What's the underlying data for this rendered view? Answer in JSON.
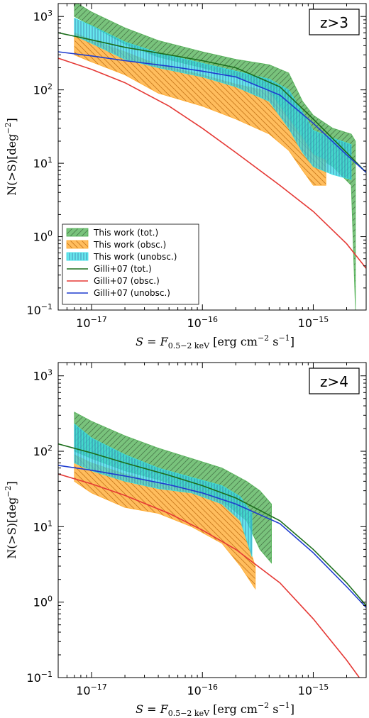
{
  "chart_data": [
    {
      "type": "area",
      "title": "",
      "annotation": "z>3",
      "xlabel": "S = F_{0.5-2 keV} [erg cm^{-2} s^{-1}]",
      "xlabel_main": "S = F",
      "xlabel_sub": "0.5−2 keV",
      "xlabel_units": "[erg cm",
      "xlabel_units_exp1": "−2",
      "xlabel_units_mid": " s",
      "xlabel_units_exp2": "−1",
      "xlabel_units_end": "]",
      "ylabel": "N(>S)[deg^{-2}]",
      "ylabel_main": "N(>S)[deg",
      "ylabel_exp": "−2",
      "ylabel_end": "]",
      "xscale": "log",
      "yscale": "log",
      "xlim": [
        5e-18,
        3e-15
      ],
      "ylim": [
        0.1,
        1500
      ],
      "xticks": [
        {
          "base": "10",
          "exp": "−17",
          "value": 1e-17
        },
        {
          "base": "10",
          "exp": "−16",
          "value": 1e-16
        },
        {
          "base": "10",
          "exp": "−15",
          "value": 1e-15
        }
      ],
      "yticks": [
        {
          "base": "10",
          "exp": "−1",
          "value": 0.1
        },
        {
          "base": "10",
          "exp": "0",
          "value": 1
        },
        {
          "base": "10",
          "exp": "1",
          "value": 10
        },
        {
          "base": "10",
          "exp": "2",
          "value": 100
        },
        {
          "base": "10",
          "exp": "3",
          "value": 1000
        }
      ],
      "legend_position": "lower-left",
      "bands": [
        {
          "name": "This work (tot.)",
          "color": "#4caf50",
          "hatch": "diag-right",
          "x": [
            7e-18,
            1e-17,
            2e-17,
            4e-17,
            1e-16,
            2e-16,
            4e-16,
            6e-16,
            8e-16,
            1e-15,
            1.5e-15,
            2.2e-15,
            2.4e-15
          ],
          "upper": [
            1600,
            1150,
            700,
            470,
            330,
            260,
            220,
            170,
            70,
            45,
            30,
            25,
            20
          ],
          "lower": [
            1000,
            750,
            420,
            280,
            200,
            150,
            100,
            40,
            20,
            13,
            9,
            5,
            0.1
          ]
        },
        {
          "name": "This work (obsc.)",
          "color": "#ffa726",
          "hatch": "diag-left",
          "x": [
            7e-18,
            1e-17,
            2e-17,
            4e-17,
            1e-16,
            2e-16,
            4e-16,
            6e-16,
            8e-16,
            1e-15,
            1.3e-15
          ],
          "upper": [
            600,
            480,
            330,
            220,
            160,
            120,
            95,
            40,
            22,
            13,
            11
          ],
          "lower": [
            300,
            240,
            160,
            90,
            60,
            40,
            25,
            15,
            8,
            5,
            5
          ]
        },
        {
          "name": "This work (unobsc.)",
          "color": "#33e0e6",
          "hatch": "vertical",
          "x": [
            7e-18,
            1e-17,
            2e-17,
            4e-17,
            1e-16,
            2e-16,
            4e-16,
            6e-16,
            8e-16,
            1e-15,
            1.5e-15,
            2.2e-15
          ],
          "upper": [
            950,
            750,
            450,
            320,
            230,
            180,
            140,
            100,
            50,
            28,
            22,
            18
          ],
          "lower": [
            550,
            430,
            260,
            200,
            150,
            110,
            70,
            30,
            14,
            9,
            7,
            6
          ]
        }
      ],
      "series": [
        {
          "name": "Gilli+07 (tot.)",
          "color": "#1b6e1b",
          "x": [
            5e-18,
            1e-17,
            2e-17,
            5e-17,
            1e-16,
            2e-16,
            5e-16,
            1e-15,
            2e-15,
            3e-15
          ],
          "values": [
            600,
            480,
            380,
            300,
            250,
            200,
            110,
            40,
            14,
            7.5
          ]
        },
        {
          "name": "Gilli+07 (obsc.)",
          "color": "#e53935",
          "x": [
            5e-18,
            1e-17,
            2e-17,
            5e-17,
            1e-16,
            2e-16,
            5e-16,
            1e-15,
            2e-15,
            3e-15
          ],
          "values": [
            270,
            190,
            125,
            60,
            30,
            14,
            5,
            2.2,
            0.8,
            0.37
          ]
        },
        {
          "name": "Gilli+07 (unobsc.)",
          "color": "#1e3ccf",
          "x": [
            5e-18,
            1e-17,
            2e-17,
            5e-17,
            1e-16,
            2e-16,
            5e-16,
            1e-15,
            2e-15,
            3e-15
          ],
          "values": [
            330,
            290,
            250,
            210,
            180,
            150,
            85,
            35,
            13,
            7.5
          ]
        }
      ]
    },
    {
      "type": "area",
      "title": "",
      "annotation": "z>4",
      "xlabel": "S = F_{0.5-2 keV} [erg cm^{-2} s^{-1}]",
      "xlabel_main": "S = F",
      "xlabel_sub": "0.5−2 keV",
      "xlabel_units": "[erg cm",
      "xlabel_units_exp1": "−2",
      "xlabel_units_mid": " s",
      "xlabel_units_exp2": "−1",
      "xlabel_units_end": "]",
      "ylabel": "N(>S)[deg^{-2}]",
      "ylabel_main": "N(>S)[deg",
      "ylabel_exp": "−2",
      "ylabel_end": "]",
      "xscale": "log",
      "yscale": "log",
      "xlim": [
        5e-18,
        3e-15
      ],
      "ylim": [
        0.1,
        1500
      ],
      "xticks": [
        {
          "base": "10",
          "exp": "−17",
          "value": 1e-17
        },
        {
          "base": "10",
          "exp": "−16",
          "value": 1e-16
        },
        {
          "base": "10",
          "exp": "−15",
          "value": 1e-15
        }
      ],
      "yticks": [
        {
          "base": "10",
          "exp": "−1",
          "value": 0.1
        },
        {
          "base": "10",
          "exp": "0",
          "value": 1
        },
        {
          "base": "10",
          "exp": "1",
          "value": 10
        },
        {
          "base": "10",
          "exp": "2",
          "value": 100
        },
        {
          "base": "10",
          "exp": "3",
          "value": 1000
        }
      ],
      "bands": [
        {
          "name": "This work (tot.)",
          "color": "#4caf50",
          "hatch": "diag-right",
          "x": [
            7e-18,
            1e-17,
            2e-17,
            4e-17,
            8e-17,
            1.5e-16,
            2.5e-16,
            3.3e-16,
            4.2e-16
          ],
          "upper": [
            330,
            250,
            160,
            110,
            80,
            60,
            40,
            30,
            20
          ],
          "lower": [
            100,
            80,
            55,
            42,
            30,
            22,
            12,
            5,
            3.3
          ]
        },
        {
          "name": "This work (obsc.)",
          "color": "#ffa726",
          "hatch": "diag-left",
          "x": [
            7e-18,
            1e-17,
            2e-17,
            4e-17,
            8e-17,
            1.5e-16,
            2.2e-16,
            3e-16
          ],
          "upper": [
            90,
            70,
            50,
            38,
            32,
            22,
            12,
            3
          ],
          "lower": [
            40,
            28,
            18,
            15,
            10,
            6,
            3,
            1.5
          ]
        },
        {
          "name": "This work (unobsc.)",
          "color": "#33e0e6",
          "hatch": "vertical",
          "x": [
            7e-18,
            1e-17,
            2e-17,
            4e-17,
            8e-17,
            1.5e-16,
            2.2e-16,
            2.8e-16
          ],
          "upper": [
            230,
            150,
            90,
            60,
            45,
            35,
            25,
            15
          ],
          "lower": [
            70,
            55,
            40,
            32,
            28,
            20,
            12,
            4
          ]
        }
      ],
      "series": [
        {
          "name": "Gilli+07 (tot.)",
          "color": "#1b6e1b",
          "x": [
            5e-18,
            1e-17,
            2e-17,
            5e-17,
            1e-16,
            2e-16,
            5e-16,
            1e-15,
            2e-15,
            3e-15
          ],
          "values": [
            125,
            95,
            70,
            48,
            35,
            24,
            12,
            5,
            1.8,
            0.9
          ]
        },
        {
          "name": "Gilli+07 (obsc.)",
          "color": "#e53935",
          "x": [
            5e-18,
            1e-17,
            2e-17,
            5e-17,
            1e-16,
            2e-16,
            5e-16,
            1e-15,
            2e-15,
            2.6e-15
          ],
          "values": [
            50,
            37,
            26,
            15,
            9,
            5,
            1.8,
            0.6,
            0.17,
            0.1
          ]
        },
        {
          "name": "Gilli+07 (unobsc.)",
          "color": "#1e3ccf",
          "x": [
            5e-18,
            1e-17,
            2e-17,
            5e-17,
            1e-16,
            2e-16,
            5e-16,
            1e-15,
            2e-15,
            3e-15
          ],
          "values": [
            65,
            56,
            47,
            36,
            28,
            20,
            11,
            4.5,
            1.6,
            0.85
          ]
        }
      ]
    }
  ]
}
